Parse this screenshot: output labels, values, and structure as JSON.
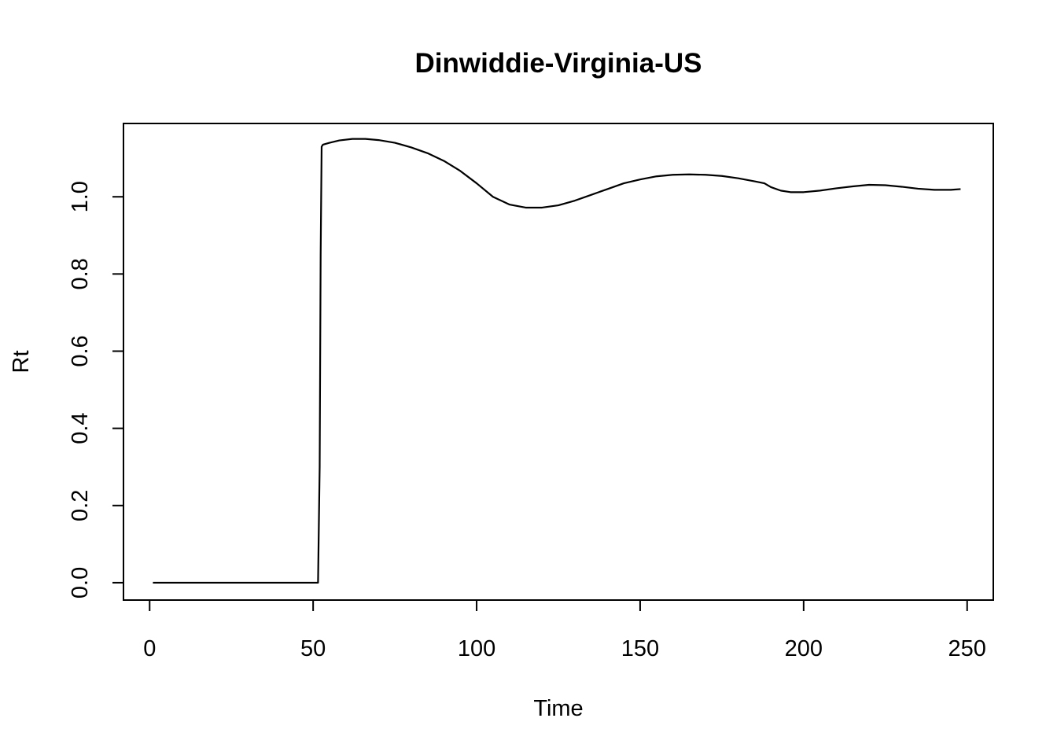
{
  "chart_data": {
    "type": "line",
    "title": "Dinwiddie-Virginia-US",
    "xlabel": "Time",
    "ylabel": "Rt",
    "xlim": [
      -8,
      258
    ],
    "ylim": [
      -0.045,
      1.19
    ],
    "x_ticks": [
      0,
      50,
      100,
      150,
      200,
      250
    ],
    "y_ticks": [
      0.0,
      0.2,
      0.4,
      0.6,
      0.8,
      1.0
    ],
    "y_tick_labels": [
      "0.0",
      "0.2",
      "0.4",
      "0.6",
      "0.8",
      "1.0"
    ],
    "x_tick_labels": [
      "0",
      "50",
      "100",
      "150",
      "200",
      "250"
    ],
    "grid": false,
    "legend": "none",
    "line_color": "#000000",
    "series": [
      {
        "x": [
          1,
          10,
          20,
          30,
          40,
          50,
          51.5,
          52,
          52.3,
          52.6,
          53,
          55,
          58,
          62,
          66,
          70,
          75,
          80,
          85,
          90,
          95,
          100,
          105,
          110,
          115,
          120,
          125,
          130,
          135,
          140,
          145,
          150,
          155,
          160,
          165,
          170,
          175,
          180,
          185,
          188,
          190,
          193,
          196,
          200,
          205,
          210,
          215,
          220,
          225,
          230,
          235,
          240,
          245,
          248
        ],
        "y": [
          0.0,
          0.0,
          0.0,
          0.0,
          0.0,
          0.0,
          0.0,
          0.3,
          0.85,
          1.13,
          1.135,
          1.14,
          1.146,
          1.15,
          1.15,
          1.147,
          1.14,
          1.128,
          1.113,
          1.093,
          1.067,
          1.035,
          1.0,
          0.98,
          0.972,
          0.972,
          0.978,
          0.99,
          1.005,
          1.02,
          1.035,
          1.045,
          1.053,
          1.057,
          1.058,
          1.057,
          1.054,
          1.048,
          1.04,
          1.035,
          1.025,
          1.016,
          1.012,
          1.012,
          1.016,
          1.022,
          1.027,
          1.031,
          1.03,
          1.026,
          1.021,
          1.018,
          1.018,
          1.02
        ]
      }
    ]
  }
}
